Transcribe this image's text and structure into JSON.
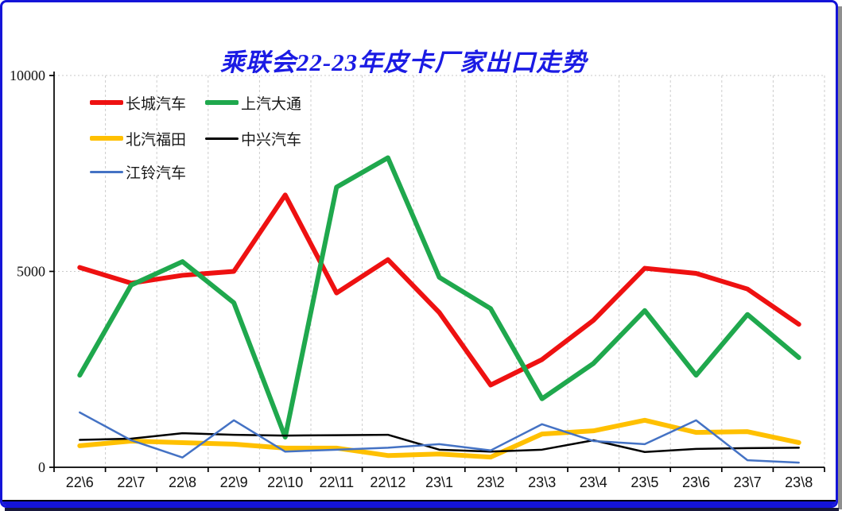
{
  "frame": {
    "border_color": "#1414d8",
    "shadow_color": "#8f8f8f",
    "footer_line_color": "#000000"
  },
  "chart_data": {
    "type": "line",
    "title": "乘联会22-23年皮卡厂家出口走势",
    "title_color": "#1b1be4",
    "categories": [
      "22\\6",
      "22\\7",
      "22\\8",
      "22\\9",
      "22\\10",
      "22\\11",
      "22\\12",
      "23\\1",
      "23\\2",
      "23\\3",
      "23\\4",
      "23\\5",
      "23\\6",
      "23\\7",
      "23\\8"
    ],
    "series": [
      {
        "name": "长城汽车",
        "color": "#ee1111",
        "width": 6,
        "values": [
          5100,
          4700,
          4900,
          5000,
          6950,
          4450,
          5300,
          3950,
          2100,
          2750,
          3750,
          5080,
          4950,
          4550,
          3650
        ]
      },
      {
        "name": "上汽大通",
        "color": "#1fa84d",
        "width": 6,
        "values": [
          2350,
          4650,
          5250,
          4200,
          770,
          7150,
          7900,
          4850,
          4050,
          1750,
          2650,
          4000,
          2350,
          3900,
          2800
        ]
      },
      {
        "name": "北汽福田",
        "color": "#ffc000",
        "width": 6,
        "values": [
          550,
          670,
          630,
          590,
          490,
          490,
          300,
          340,
          260,
          850,
          930,
          1200,
          890,
          910,
          630
        ]
      },
      {
        "name": "中兴汽车",
        "color": "#000000",
        "width": 2.5,
        "values": [
          700,
          730,
          870,
          830,
          810,
          820,
          830,
          450,
          400,
          450,
          690,
          390,
          470,
          490,
          500
        ]
      },
      {
        "name": "江铃汽车",
        "color": "#4472c4",
        "width": 2.5,
        "values": [
          1400,
          690,
          250,
          1200,
          400,
          450,
          500,
          590,
          430,
          1100,
          670,
          590,
          1200,
          180,
          120
        ]
      }
    ],
    "ylim": [
      0,
      10000
    ],
    "yticks": [
      0,
      5000,
      10000
    ],
    "ytick_labels": [
      "0",
      "5000",
      "10000"
    ],
    "grid": true,
    "legend_position": "top-left"
  }
}
